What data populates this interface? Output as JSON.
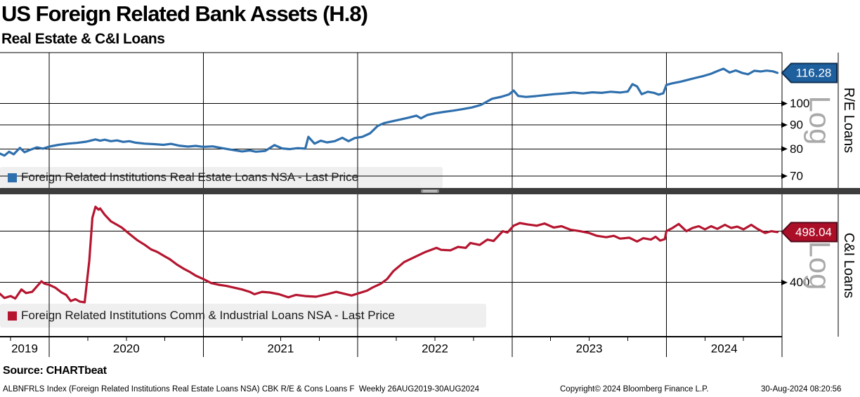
{
  "header": {
    "title": "US Foreign Related Bank Assets (H.8)",
    "subtitle": "Real Estate & C&I Loans"
  },
  "source_line": "Source: CHARTbeat",
  "footer": {
    "instrument": "ALBNFRLS Index (Foreign Related Institutions Real Estate Loans NSA) CBK R/E & Cons Loans F",
    "period": "Weekly 26AUG2019-30AUG2024",
    "copyright": "Copyright© 2024 Bloomberg Finance L.P.",
    "timestamp": "30-Aug-2024 08:20:56"
  },
  "colors": {
    "re_line": "#2e6fad",
    "re_badge_fill": "#1e5f9e",
    "re_badge_stroke": "#0e2f52",
    "ci_line": "#b5152f",
    "ci_badge_fill": "#ab0f28",
    "ci_badge_stroke": "#55091a",
    "gridline": "#000000",
    "legend_bg": "#efefef",
    "divider": "#3d3d3d",
    "log_watermark": "#a9a9a9"
  },
  "chart_data": [
    {
      "type": "line",
      "name": "R/E Loans",
      "scale_label": "Log",
      "yscale": "log",
      "legend": "Foreign Related Institutions Real Estate Loans NSA - Last Price",
      "last_price": "116.28",
      "ylim": [
        66,
        128.5
      ],
      "yticks": [
        70,
        80,
        90,
        100
      ],
      "extra_gridlines": [],
      "x_range": [
        2019.654,
        2024.664
      ],
      "series": [
        [
          2019.65,
          77.8
        ],
        [
          2019.68,
          78.2
        ],
        [
          2019.71,
          77.4
        ],
        [
          2019.74,
          78.9
        ],
        [
          2019.77,
          77.9
        ],
        [
          2019.81,
          80.4
        ],
        [
          2019.84,
          78.7
        ],
        [
          2019.88,
          79.7
        ],
        [
          2019.92,
          80.6
        ],
        [
          2019.96,
          80.1
        ],
        [
          2020.0,
          80.9
        ],
        [
          2020.06,
          81.6
        ],
        [
          2020.12,
          82.1
        ],
        [
          2020.18,
          82.4
        ],
        [
          2020.24,
          82.9
        ],
        [
          2020.3,
          83.8
        ],
        [
          2020.33,
          83.3
        ],
        [
          2020.36,
          83.7
        ],
        [
          2020.4,
          83.1
        ],
        [
          2020.44,
          83.4
        ],
        [
          2020.48,
          82.8
        ],
        [
          2020.52,
          83.1
        ],
        [
          2020.56,
          82.5
        ],
        [
          2020.62,
          82.1
        ],
        [
          2020.68,
          81.9
        ],
        [
          2020.74,
          81.6
        ],
        [
          2020.79,
          82.0
        ],
        [
          2020.84,
          81.3
        ],
        [
          2020.9,
          80.9
        ],
        [
          2020.95,
          81.2
        ],
        [
          2021.0,
          80.8
        ],
        [
          2021.06,
          81.0
        ],
        [
          2021.12,
          80.3
        ],
        [
          2021.18,
          79.7
        ],
        [
          2021.25,
          79.0
        ],
        [
          2021.3,
          79.4
        ],
        [
          2021.34,
          78.9
        ],
        [
          2021.4,
          79.2
        ],
        [
          2021.46,
          81.5
        ],
        [
          2021.51,
          80.2
        ],
        [
          2021.56,
          79.9
        ],
        [
          2021.61,
          80.3
        ],
        [
          2021.66,
          80.1
        ],
        [
          2021.68,
          84.9
        ],
        [
          2021.72,
          82.1
        ],
        [
          2021.76,
          83.3
        ],
        [
          2021.8,
          82.6
        ],
        [
          2021.85,
          83.1
        ],
        [
          2021.9,
          84.5
        ],
        [
          2021.94,
          83.1
        ],
        [
          2021.98,
          84.4
        ],
        [
          2022.03,
          84.9
        ],
        [
          2022.08,
          86.4
        ],
        [
          2022.13,
          89.6
        ],
        [
          2022.17,
          90.8
        ],
        [
          2022.22,
          91.6
        ],
        [
          2022.28,
          92.5
        ],
        [
          2022.33,
          93.3
        ],
        [
          2022.38,
          94.2
        ],
        [
          2022.41,
          93.0
        ],
        [
          2022.45,
          94.5
        ],
        [
          2022.5,
          95.3
        ],
        [
          2022.56,
          96.0
        ],
        [
          2022.62,
          96.6
        ],
        [
          2022.68,
          97.3
        ],
        [
          2022.74,
          98.1
        ],
        [
          2022.8,
          99.4
        ],
        [
          2022.87,
          102.4
        ],
        [
          2022.93,
          103.4
        ],
        [
          2022.98,
          104.6
        ],
        [
          2023.01,
          106.6
        ],
        [
          2023.04,
          103.8
        ],
        [
          2023.09,
          103.3
        ],
        [
          2023.15,
          103.7
        ],
        [
          2023.21,
          104.2
        ],
        [
          2023.27,
          104.7
        ],
        [
          2023.34,
          105.1
        ],
        [
          2023.4,
          105.6
        ],
        [
          2023.46,
          105.1
        ],
        [
          2023.52,
          105.7
        ],
        [
          2023.58,
          105.4
        ],
        [
          2023.64,
          106.0
        ],
        [
          2023.7,
          105.6
        ],
        [
          2023.75,
          106.1
        ],
        [
          2023.78,
          110.0
        ],
        [
          2023.81,
          108.8
        ],
        [
          2023.84,
          104.7
        ],
        [
          2023.88,
          106.0
        ],
        [
          2023.92,
          105.4
        ],
        [
          2023.95,
          104.5
        ],
        [
          2023.98,
          105.2
        ],
        [
          2024.0,
          109.6
        ],
        [
          2024.04,
          110.5
        ],
        [
          2024.09,
          111.3
        ],
        [
          2024.14,
          112.4
        ],
        [
          2024.19,
          113.5
        ],
        [
          2024.24,
          114.5
        ],
        [
          2024.29,
          115.8
        ],
        [
          2024.33,
          117.3
        ],
        [
          2024.37,
          118.7
        ],
        [
          2024.41,
          116.5
        ],
        [
          2024.45,
          117.7
        ],
        [
          2024.49,
          116.3
        ],
        [
          2024.53,
          115.5
        ],
        [
          2024.57,
          117.5
        ],
        [
          2024.61,
          117.1
        ],
        [
          2024.65,
          117.6
        ],
        [
          2024.69,
          117.2
        ],
        [
          2024.72,
          116.28
        ]
      ]
    },
    {
      "type": "line",
      "name": "C&I Loans",
      "scale_label": "Log",
      "yscale": "log",
      "legend": "Foreign Related Institutions Comm & Industrial Loans NSA - Last Price",
      "last_price": "498.04",
      "ylim": [
        316,
        587
      ],
      "yticks": [
        400
      ],
      "extra_gridlines": [
        500
      ],
      "x_range": [
        2019.654,
        2024.664
      ],
      "series": [
        [
          2019.65,
          379
        ],
        [
          2019.68,
          381
        ],
        [
          2019.71,
          374
        ],
        [
          2019.75,
          377
        ],
        [
          2019.78,
          373
        ],
        [
          2019.82,
          388
        ],
        [
          2019.85,
          382
        ],
        [
          2019.89,
          384
        ],
        [
          2019.93,
          396
        ],
        [
          2019.95,
          402
        ],
        [
          2019.97,
          398
        ],
        [
          2020.0,
          396
        ],
        [
          2020.04,
          391
        ],
        [
          2020.08,
          383
        ],
        [
          2020.11,
          379
        ],
        [
          2020.14,
          369
        ],
        [
          2020.17,
          372
        ],
        [
          2020.2,
          368
        ],
        [
          2020.23,
          367
        ],
        [
          2020.26,
          440
        ],
        [
          2020.28,
          530
        ],
        [
          2020.3,
          556
        ],
        [
          2020.32,
          549
        ],
        [
          2020.33,
          552
        ],
        [
          2020.36,
          537
        ],
        [
          2020.4,
          522
        ],
        [
          2020.44,
          514
        ],
        [
          2020.47,
          508
        ],
        [
          2020.52,
          494
        ],
        [
          2020.57,
          481
        ],
        [
          2020.62,
          471
        ],
        [
          2020.66,
          462
        ],
        [
          2020.7,
          457
        ],
        [
          2020.75,
          448
        ],
        [
          2020.78,
          443
        ],
        [
          2020.83,
          432
        ],
        [
          2020.87,
          425
        ],
        [
          2020.91,
          419
        ],
        [
          2020.95,
          412
        ],
        [
          2021.0,
          406
        ],
        [
          2021.05,
          399
        ],
        [
          2021.1,
          396
        ],
        [
          2021.15,
          394
        ],
        [
          2021.2,
          391
        ],
        [
          2021.25,
          388
        ],
        [
          2021.3,
          384
        ],
        [
          2021.33,
          380
        ],
        [
          2021.38,
          384
        ],
        [
          2021.43,
          383
        ],
        [
          2021.49,
          380
        ],
        [
          2021.55,
          375
        ],
        [
          2021.6,
          379
        ],
        [
          2021.66,
          377
        ],
        [
          2021.73,
          376
        ],
        [
          2021.8,
          380
        ],
        [
          2021.86,
          384
        ],
        [
          2021.91,
          381
        ],
        [
          2021.96,
          378
        ],
        [
          2022.01,
          382
        ],
        [
          2022.06,
          386
        ],
        [
          2022.1,
          392
        ],
        [
          2022.15,
          398
        ],
        [
          2022.19,
          406
        ],
        [
          2022.23,
          420
        ],
        [
          2022.3,
          437
        ],
        [
          2022.37,
          447
        ],
        [
          2022.44,
          457
        ],
        [
          2022.51,
          465
        ],
        [
          2022.54,
          461
        ],
        [
          2022.6,
          460
        ],
        [
          2022.65,
          467
        ],
        [
          2022.7,
          465
        ],
        [
          2022.73,
          475
        ],
        [
          2022.79,
          471
        ],
        [
          2022.84,
          482
        ],
        [
          2022.88,
          479
        ],
        [
          2022.94,
          500
        ],
        [
          2022.97,
          497
        ],
        [
          2023.01,
          512
        ],
        [
          2023.05,
          518
        ],
        [
          2023.1,
          515
        ],
        [
          2023.16,
          512
        ],
        [
          2023.21,
          517
        ],
        [
          2023.27,
          508
        ],
        [
          2023.32,
          511
        ],
        [
          2023.38,
          503
        ],
        [
          2023.44,
          500
        ],
        [
          2023.5,
          496
        ],
        [
          2023.55,
          490
        ],
        [
          2023.61,
          487
        ],
        [
          2023.66,
          490
        ],
        [
          2023.7,
          484
        ],
        [
          2023.76,
          486
        ],
        [
          2023.81,
          478
        ],
        [
          2023.85,
          485
        ],
        [
          2023.9,
          482
        ],
        [
          2023.93,
          488
        ],
        [
          2023.96,
          480
        ],
        [
          2023.99,
          483
        ],
        [
          2024.0,
          500
        ],
        [
          2024.04,
          507
        ],
        [
          2024.08,
          516
        ],
        [
          2024.13,
          500
        ],
        [
          2024.17,
          507
        ],
        [
          2024.21,
          511
        ],
        [
          2024.25,
          504
        ],
        [
          2024.29,
          511
        ],
        [
          2024.33,
          505
        ],
        [
          2024.38,
          514
        ],
        [
          2024.42,
          507
        ],
        [
          2024.46,
          510
        ],
        [
          2024.5,
          504
        ],
        [
          2024.55,
          514
        ],
        [
          2024.59,
          505
        ],
        [
          2024.64,
          496
        ],
        [
          2024.68,
          500
        ],
        [
          2024.72,
          498.04
        ]
      ]
    }
  ],
  "x_axis": {
    "year_labels": [
      "2019",
      "2020",
      "2021",
      "2022",
      "2023",
      "2024"
    ],
    "grid_years": [
      2020,
      2021,
      2022,
      2023,
      2024
    ]
  }
}
